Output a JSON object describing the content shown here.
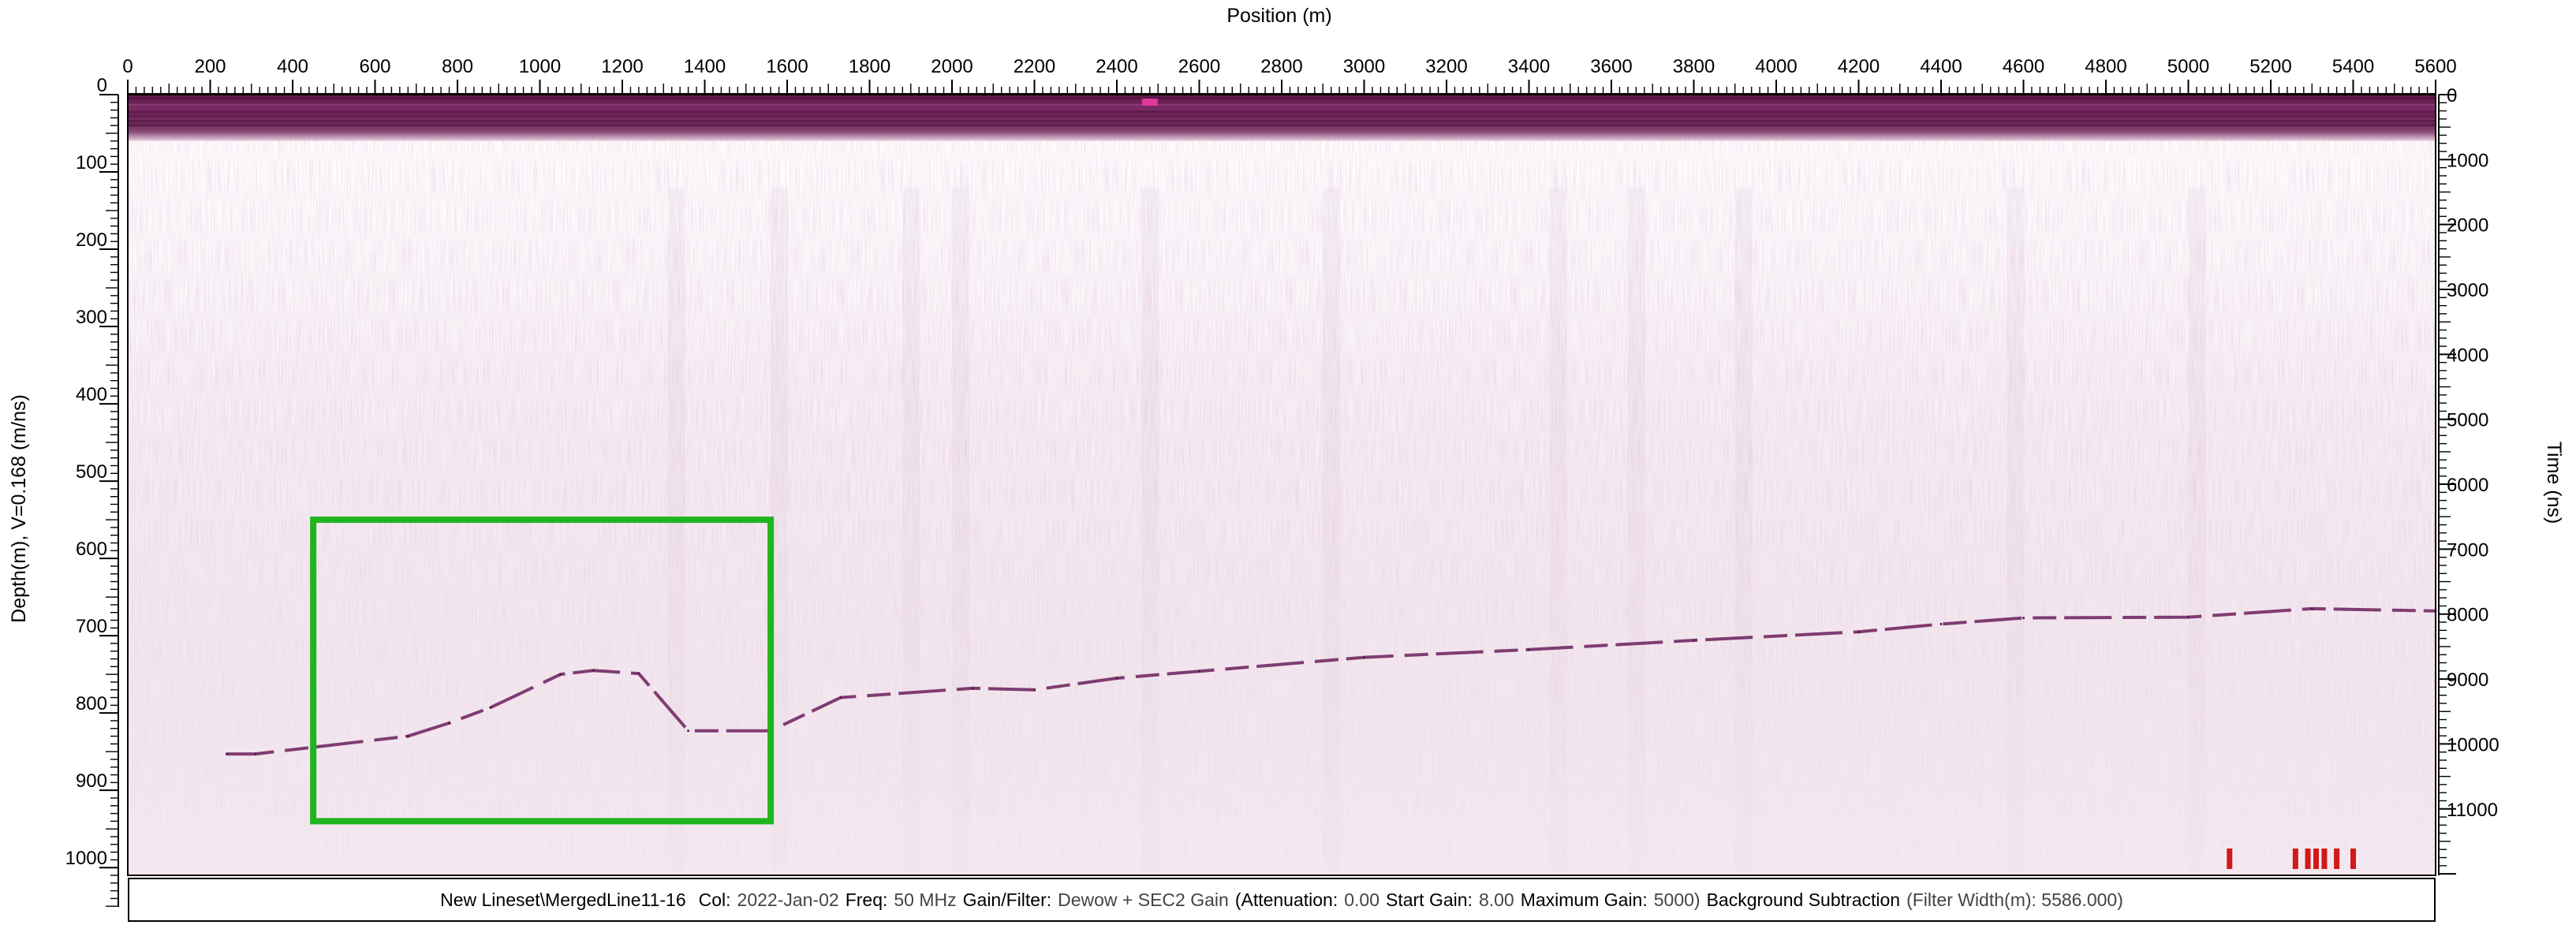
{
  "chart_data": {
    "type": "heatmap",
    "title": "",
    "xlabel": "Position (m)",
    "ylabel": "Depth(m), V=0.168 (m/ns)",
    "y2label": "Time (ns)",
    "xlim": [
      0,
      5600
    ],
    "ylim": [
      0,
      1010
    ],
    "y2lim": [
      0,
      12023
    ],
    "x_ticks": [
      0,
      200,
      400,
      600,
      800,
      1000,
      1200,
      1400,
      1600,
      1800,
      2000,
      2200,
      2400,
      2600,
      2800,
      3000,
      3200,
      3400,
      3600,
      3800,
      4000,
      4200,
      4400,
      4600,
      4800,
      5000,
      5200,
      5400,
      5600
    ],
    "y_ticks": [
      0,
      100,
      200,
      300,
      400,
      500,
      600,
      700,
      800,
      900,
      1000
    ],
    "y2_ticks": [
      0,
      1000,
      2000,
      3000,
      4000,
      5000,
      6000,
      7000,
      8000,
      9000,
      10000,
      11000
    ],
    "colormap": {
      "low": "#ffffff",
      "high": "#4a0f3a"
    },
    "surface_band_depth_m": [
      0,
      60
    ],
    "reflector": [
      {
        "x": 240,
        "y": 853
      },
      {
        "x": 310,
        "y": 853
      },
      {
        "x": 680,
        "y": 830
      },
      {
        "x": 780,
        "y": 813
      },
      {
        "x": 880,
        "y": 793
      },
      {
        "x": 1050,
        "y": 750
      },
      {
        "x": 1130,
        "y": 745
      },
      {
        "x": 1240,
        "y": 749
      },
      {
        "x": 1360,
        "y": 823
      },
      {
        "x": 1560,
        "y": 823
      },
      {
        "x": 1730,
        "y": 780
      },
      {
        "x": 2050,
        "y": 768
      },
      {
        "x": 2200,
        "y": 770
      },
      {
        "x": 2400,
        "y": 755
      },
      {
        "x": 2600,
        "y": 746
      },
      {
        "x": 3000,
        "y": 728
      },
      {
        "x": 3400,
        "y": 718
      },
      {
        "x": 3800,
        "y": 706
      },
      {
        "x": 4200,
        "y": 695
      },
      {
        "x": 4400,
        "y": 685
      },
      {
        "x": 4600,
        "y": 677
      },
      {
        "x": 5000,
        "y": 676
      },
      {
        "x": 5300,
        "y": 665
      },
      {
        "x": 5600,
        "y": 668
      }
    ],
    "highlight_box": {
      "x": [
        450,
        1560
      ],
      "y": [
        550,
        940
      ],
      "color": "#1fb51f"
    },
    "markers": {
      "x": [
        5100,
        5260,
        5290,
        5310,
        5330,
        5360,
        5400
      ],
      "color": "#d11a1a"
    },
    "surface_marker": {
      "x": 2480,
      "color": "#e0389a"
    }
  },
  "footer": {
    "line_name": "New Lineset\\MergedLine11-16",
    "col_label": "Col:",
    "col_value": "2022-Jan-02",
    "freq_label": "Freq:",
    "freq_value": "50 MHz",
    "gain_label": "Gain/Filter:",
    "gain_value": "Dewow + SEC2 Gain",
    "atten_label": "(Attenuation:",
    "atten_value": "0.00",
    "start_label": "Start Gain:",
    "start_value": "8.00",
    "max_label": "Maximum Gain:",
    "max_value": "5000)",
    "bg_label": "Background Subtraction",
    "bg_value": "(Filter Width(m): 5586.000)"
  }
}
